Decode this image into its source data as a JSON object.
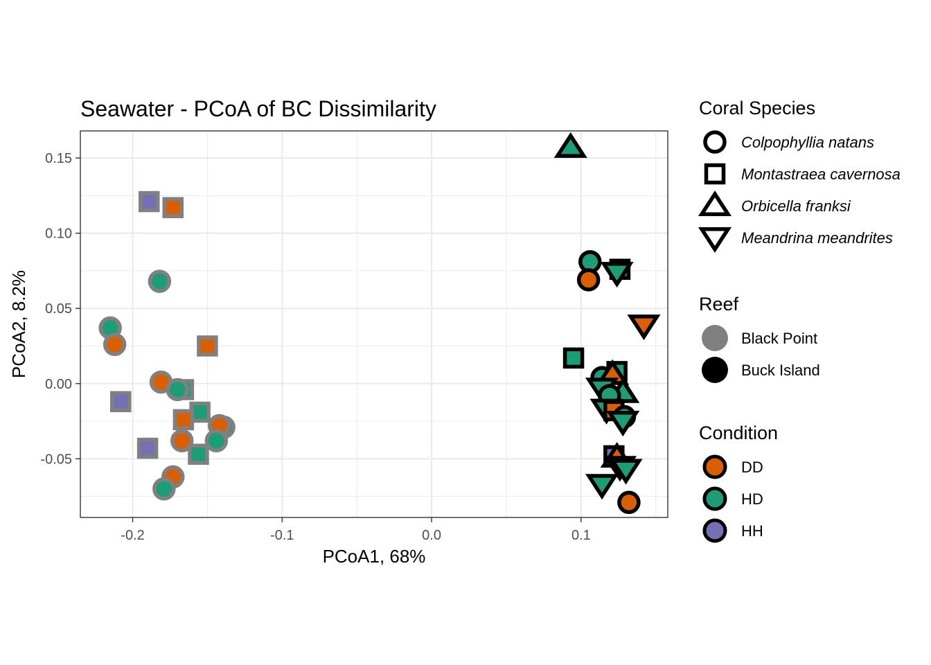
{
  "chart_data": {
    "type": "scatter",
    "title": "Seawater - PCoA of BC Dissimilarity",
    "xlabel": "PCoA1, 68%",
    "ylabel": "PCoA2, 8.2%",
    "xlim": [
      -0.235,
      0.158
    ],
    "ylim": [
      -0.089,
      0.168
    ],
    "x_ticks": [
      -0.2,
      -0.1,
      0.0,
      0.1
    ],
    "x_tick_labels": [
      "-0.2",
      "-0.1",
      "0.0",
      "0.1"
    ],
    "y_ticks": [
      -0.05,
      0.0,
      0.05,
      0.1,
      0.15
    ],
    "y_tick_labels": [
      "-0.05",
      "0.00",
      "0.05",
      "0.10",
      "0.15"
    ],
    "grid": true,
    "legend_position": "right",
    "colors": {
      "DD": "#D95F02",
      "HD": "#1B9E77",
      "HH": "#7570B3",
      "Black Point": "#808080",
      "Buck Island": "#000000"
    },
    "legends": [
      {
        "title": "Coral Species",
        "items": [
          {
            "label": "Colpophyllia natans",
            "shape": "circle",
            "italic": true
          },
          {
            "label": "Montastraea cavernosa",
            "shape": "square",
            "italic": true
          },
          {
            "label": "Orbicella franksi",
            "shape": "triangle",
            "italic": true
          },
          {
            "label": "Meandrina meandrites",
            "shape": "triangle-down",
            "italic": true
          }
        ]
      },
      {
        "title": "Reef",
        "items": [
          {
            "label": "Black Point",
            "color": "#808080"
          },
          {
            "label": "Buck Island",
            "color": "#000000"
          }
        ]
      },
      {
        "title": "Condition",
        "items": [
          {
            "label": "DD",
            "color": "#D95F02"
          },
          {
            "label": "HD",
            "color": "#1B9E77"
          },
          {
            "label": "HH",
            "color": "#7570B3"
          }
        ]
      }
    ],
    "points": [
      {
        "x": -0.189,
        "y": 0.121,
        "shape": "square",
        "reef": "Black Point",
        "condition": "HH"
      },
      {
        "x": -0.173,
        "y": 0.117,
        "shape": "square",
        "reef": "Black Point",
        "condition": "DD"
      },
      {
        "x": -0.182,
        "y": 0.068,
        "shape": "circle",
        "reef": "Black Point",
        "condition": "HD"
      },
      {
        "x": -0.215,
        "y": 0.037,
        "shape": "circle",
        "reef": "Black Point",
        "condition": "HD"
      },
      {
        "x": -0.212,
        "y": 0.026,
        "shape": "circle",
        "reef": "Black Point",
        "condition": "DD"
      },
      {
        "x": -0.15,
        "y": 0.025,
        "shape": "square",
        "reef": "Black Point",
        "condition": "DD"
      },
      {
        "x": -0.181,
        "y": 0.001,
        "shape": "circle",
        "reef": "Black Point",
        "condition": "DD"
      },
      {
        "x": -0.166,
        "y": -0.004,
        "shape": "square",
        "reef": "Black Point",
        "condition": "HD"
      },
      {
        "x": -0.17,
        "y": -0.004,
        "shape": "circle",
        "reef": "Black Point",
        "condition": "HD"
      },
      {
        "x": -0.208,
        "y": -0.012,
        "shape": "square",
        "reef": "Black Point",
        "condition": "HH"
      },
      {
        "x": -0.155,
        "y": -0.019,
        "shape": "square",
        "reef": "Black Point",
        "condition": "HD"
      },
      {
        "x": -0.166,
        "y": -0.024,
        "shape": "square",
        "reef": "Black Point",
        "condition": "DD"
      },
      {
        "x": -0.139,
        "y": -0.029,
        "shape": "circle",
        "reef": "Black Point",
        "condition": "HD"
      },
      {
        "x": -0.142,
        "y": -0.028,
        "shape": "circle",
        "reef": "Black Point",
        "condition": "DD"
      },
      {
        "x": -0.167,
        "y": -0.038,
        "shape": "circle",
        "reef": "Black Point",
        "condition": "DD"
      },
      {
        "x": -0.144,
        "y": -0.038,
        "shape": "circle",
        "reef": "Black Point",
        "condition": "HD"
      },
      {
        "x": -0.19,
        "y": -0.043,
        "shape": "square",
        "reef": "Black Point",
        "condition": "HH"
      },
      {
        "x": -0.156,
        "y": -0.047,
        "shape": "square",
        "reef": "Black Point",
        "condition": "HD"
      },
      {
        "x": -0.173,
        "y": -0.062,
        "shape": "circle",
        "reef": "Black Point",
        "condition": "DD"
      },
      {
        "x": -0.179,
        "y": -0.07,
        "shape": "circle",
        "reef": "Black Point",
        "condition": "HD"
      },
      {
        "x": 0.093,
        "y": 0.157,
        "shape": "triangle",
        "reef": "Buck Island",
        "condition": "HD"
      },
      {
        "x": 0.106,
        "y": 0.081,
        "shape": "circle",
        "reef": "Buck Island",
        "condition": "HD"
      },
      {
        "x": 0.105,
        "y": 0.069,
        "shape": "circle",
        "reef": "Buck Island",
        "condition": "DD"
      },
      {
        "x": 0.126,
        "y": 0.076,
        "shape": "square",
        "reef": "Buck Island",
        "condition": "HD"
      },
      {
        "x": 0.124,
        "y": 0.074,
        "shape": "triangle-down",
        "reef": "Buck Island",
        "condition": "HD"
      },
      {
        "x": 0.142,
        "y": 0.039,
        "shape": "triangle-down",
        "reef": "Buck Island",
        "condition": "DD"
      },
      {
        "x": 0.095,
        "y": 0.017,
        "shape": "square",
        "reef": "Buck Island",
        "condition": "HD"
      },
      {
        "x": 0.124,
        "y": 0.008,
        "shape": "square",
        "reef": "Buck Island",
        "condition": "HD"
      },
      {
        "x": 0.114,
        "y": 0.004,
        "shape": "circle",
        "reef": "Buck Island",
        "condition": "HD"
      },
      {
        "x": 0.121,
        "y": 0.006,
        "shape": "triangle",
        "reef": "Buck Island",
        "condition": "DD"
      },
      {
        "x": 0.114,
        "y": -0.003,
        "shape": "triangle-down",
        "reef": "Buck Island",
        "condition": "HD"
      },
      {
        "x": 0.128,
        "y": -0.006,
        "shape": "triangle",
        "reef": "Buck Island",
        "condition": "HD"
      },
      {
        "x": 0.119,
        "y": -0.008,
        "shape": "circle",
        "reef": "Buck Island",
        "condition": "HD"
      },
      {
        "x": 0.117,
        "y": -0.017,
        "shape": "triangle-down",
        "reef": "Buck Island",
        "condition": "HD"
      },
      {
        "x": 0.122,
        "y": -0.018,
        "shape": "square",
        "reef": "Buck Island",
        "condition": "DD"
      },
      {
        "x": 0.129,
        "y": -0.022,
        "shape": "circle",
        "reef": "Buck Island",
        "condition": "HD"
      },
      {
        "x": 0.128,
        "y": -0.025,
        "shape": "triangle-down",
        "reef": "Buck Island",
        "condition": "HD"
      },
      {
        "x": 0.122,
        "y": -0.048,
        "shape": "square",
        "reef": "Buck Island",
        "condition": "HH"
      },
      {
        "x": 0.124,
        "y": -0.049,
        "shape": "triangle",
        "reef": "Buck Island",
        "condition": "DD"
      },
      {
        "x": 0.126,
        "y": -0.055,
        "shape": "triangle-down",
        "reef": "Buck Island",
        "condition": "DD"
      },
      {
        "x": 0.13,
        "y": -0.057,
        "shape": "triangle-down",
        "reef": "Buck Island",
        "condition": "HD"
      },
      {
        "x": 0.114,
        "y": -0.067,
        "shape": "triangle-down",
        "reef": "Buck Island",
        "condition": "HD"
      },
      {
        "x": 0.132,
        "y": -0.079,
        "shape": "circle",
        "reef": "Buck Island",
        "condition": "DD"
      }
    ]
  }
}
